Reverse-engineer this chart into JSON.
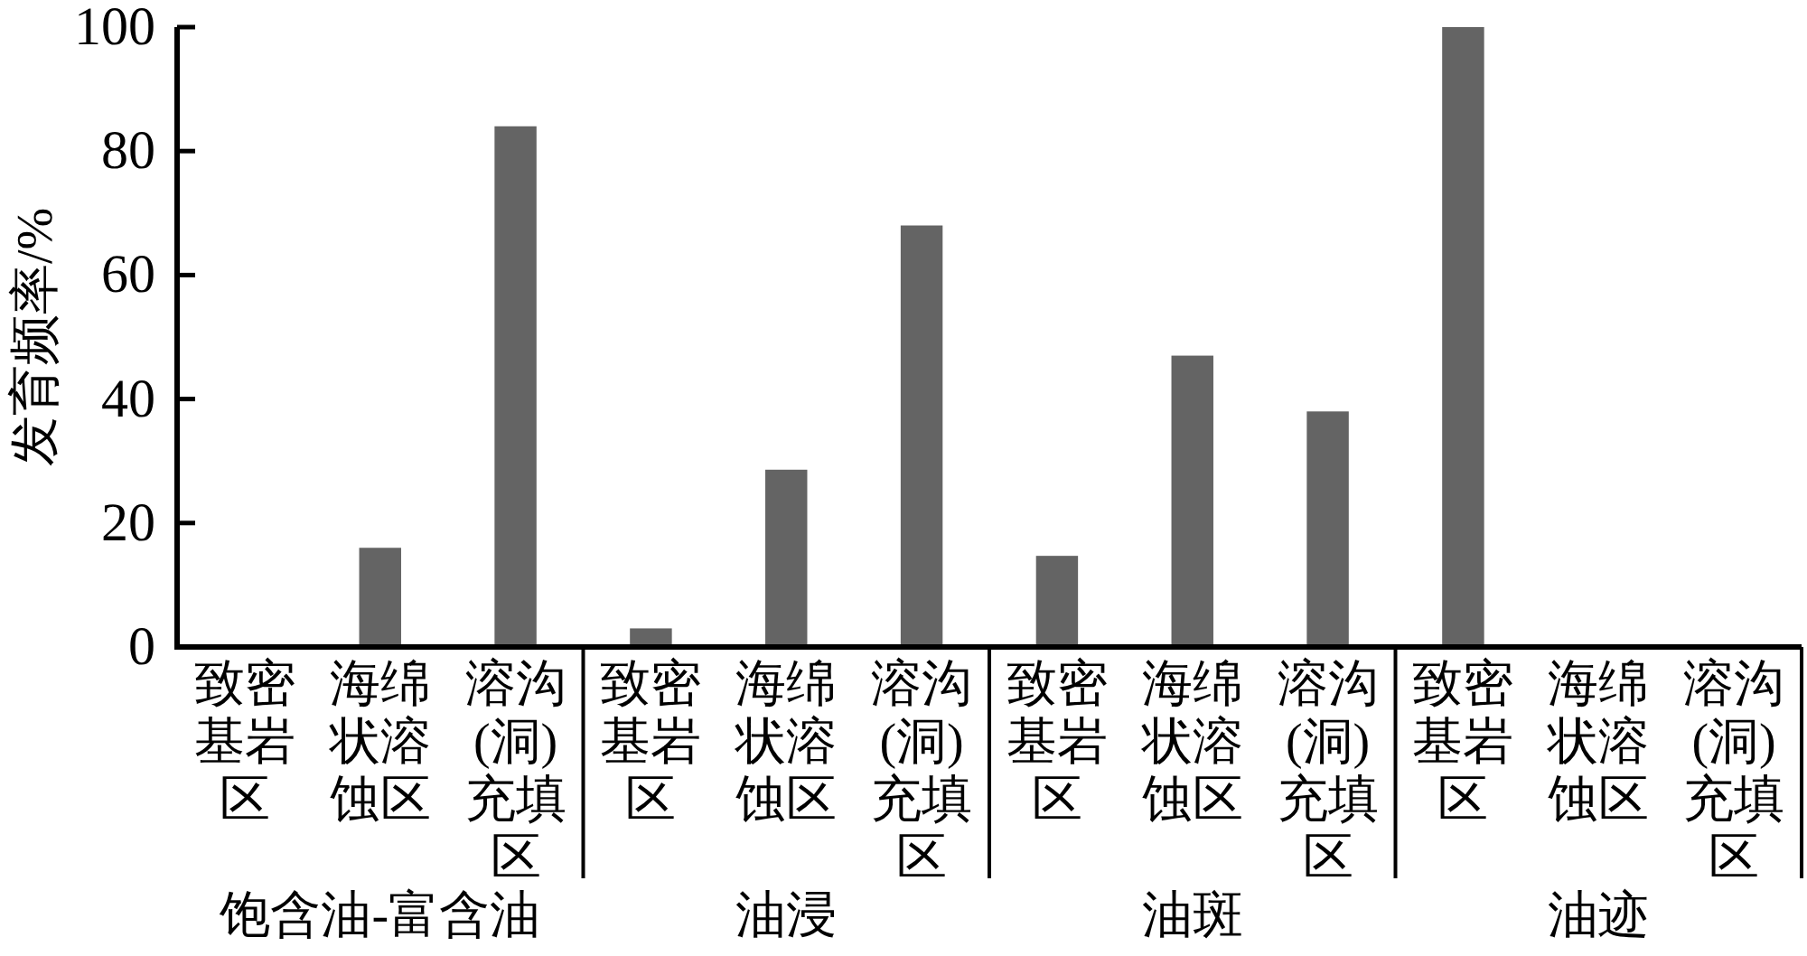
{
  "chart_data": {
    "type": "bar",
    "ylabel": "发育频率/%",
    "categories": [
      "致密基岩区",
      "海绵状溶蚀区",
      "溶沟(洞)充填区",
      "致密基岩区",
      "海绵状溶蚀区",
      "溶沟(洞)充填区",
      "致密基岩区",
      "海绵状溶蚀区",
      "溶沟(洞)充填区",
      "致密基岩区",
      "海绵状溶蚀区",
      "溶沟(洞)充填区"
    ],
    "values": [
      0,
      16,
      84,
      3,
      28.6,
      68,
      14.7,
      47,
      38,
      100,
      0,
      0
    ],
    "color": "#646464",
    "ylim": [
      0,
      100
    ],
    "yticks": [
      0,
      20,
      40,
      60,
      80,
      100
    ],
    "annotations": [
      "饱含油-富含油",
      "油浸",
      "油斑",
      "油迹"
    ]
  }
}
